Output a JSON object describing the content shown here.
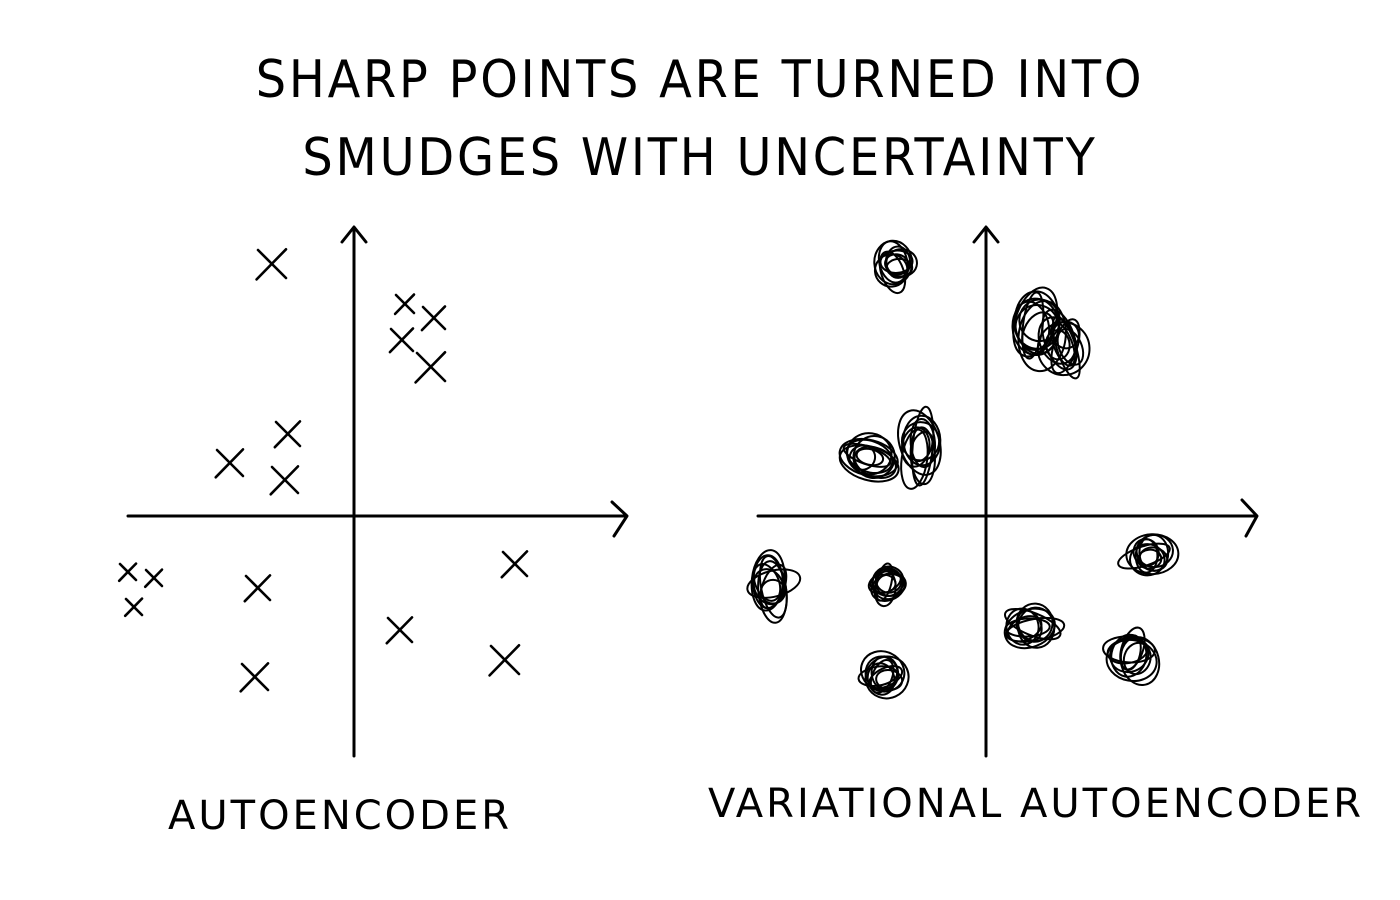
{
  "title": {
    "line1": "SHARP POINTS ARE TURNED INTO",
    "line2": "SMUDGES WITH UNCERTAINTY"
  },
  "panels": [
    {
      "caption": "AUTOENCODER",
      "marker": "x-mark-icon"
    },
    {
      "caption": "VARIATIONAL AUTOENCODER",
      "marker": "smudge-icon"
    }
  ]
}
